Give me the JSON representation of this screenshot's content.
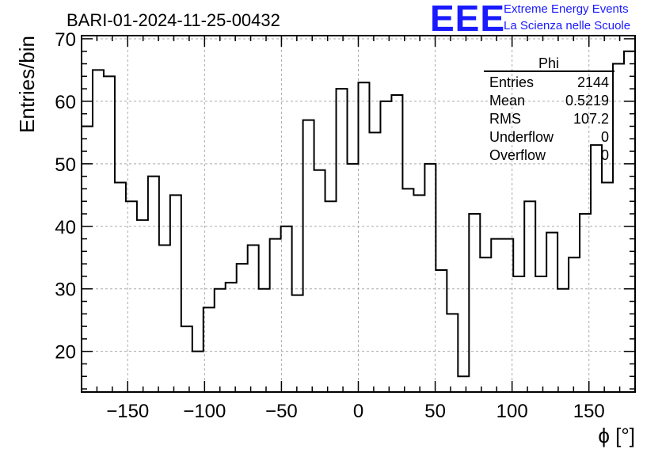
{
  "chart_data": {
    "type": "histogram",
    "title": "BARI-01-2024-11-25-00432",
    "xlabel": "ϕ [°]",
    "ylabel": "Entries/bin",
    "xlim": [
      -180,
      180
    ],
    "ylim": [
      13.5,
      70.5
    ],
    "bin_width": 7.2,
    "x_ticks": [
      "−150",
      "−100",
      "−50",
      "0",
      "50",
      "100",
      "150"
    ],
    "x_tick_values": [
      -150,
      -100,
      -50,
      0,
      50,
      100,
      150
    ],
    "y_ticks": [
      "20",
      "30",
      "40",
      "50",
      "60",
      "70"
    ],
    "y_tick_values": [
      20,
      30,
      40,
      50,
      60,
      70
    ],
    "grid": true,
    "values": [
      56,
      65,
      64,
      47,
      44,
      41,
      48,
      37,
      45,
      24,
      20,
      27,
      30,
      31,
      34,
      37,
      30,
      38,
      40,
      29,
      57,
      49,
      44,
      62,
      50,
      63,
      55,
      60,
      61,
      46,
      45,
      50,
      33,
      26,
      16,
      42,
      35,
      38,
      38,
      32,
      44,
      32,
      39,
      30,
      35,
      42,
      53,
      47,
      66,
      68
    ]
  },
  "stats_box": {
    "name": "Phi",
    "rows": [
      {
        "label": "Entries",
        "value": "2144"
      },
      {
        "label": "Mean",
        "value": "0.5219"
      },
      {
        "label": "RMS",
        "value": "107.2"
      },
      {
        "label": "Underflow",
        "value": "0"
      },
      {
        "label": "Overflow",
        "value": "0"
      }
    ]
  },
  "logo": {
    "mark": "EEE",
    "line1": "Extreme Energy Events",
    "line2": "La Scienza nelle Scuole",
    "color": "#1a1aff"
  }
}
